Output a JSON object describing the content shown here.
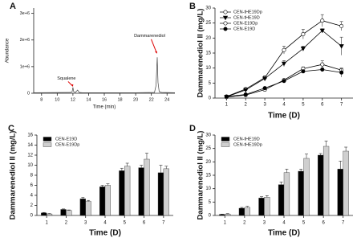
{
  "chart_data": [
    {
      "type": "line",
      "panel_label": "A",
      "xlabel": "Time (min)",
      "ylabel": "Abundance",
      "x": [
        7,
        11.7,
        11.9,
        12.0,
        12.1,
        12.3,
        12.6,
        12.8,
        13.2,
        16,
        20,
        22.4,
        22.6,
        22.75,
        22.85,
        23.0,
        23.3,
        25
      ],
      "series": [
        {
          "color": "#444444",
          "values": [
            20000,
            30000,
            60000,
            220000,
            60000,
            30000,
            120000,
            30000,
            20000,
            20000,
            20000,
            30000,
            300000,
            1350000,
            400000,
            60000,
            30000,
            20000
          ]
        }
      ],
      "annotations": [
        "Squalene",
        "Dammarenediol"
      ],
      "xlim": [
        7,
        25
      ],
      "xticks": [
        8,
        10,
        12,
        14,
        16,
        18,
        20,
        22,
        24
      ],
      "ylim": [
        0,
        3200000
      ],
      "yticks": [
        0,
        {
          "value": 1000000,
          "label": "1e+6"
        },
        {
          "value": 2000000,
          "label": "2e+6"
        },
        {
          "value": 3000000,
          "label": "3e+6"
        }
      ]
    },
    {
      "type": "line",
      "panel_label": "B",
      "xlabel": "Time (D)",
      "ylabel": "Dammarenediol II (mg/L)",
      "x": [
        1,
        2,
        3,
        4,
        5,
        6,
        7
      ],
      "legend": "upper left",
      "series": [
        {
          "name": "CEN-tHE19Dp",
          "color": "#ffffff",
          "marker": "circle",
          "values": [
            0.5,
            3.0,
            6.8,
            16.0,
            21.3,
            25.8,
            24.0
          ],
          "errors": [
            0.2,
            0.4,
            0.6,
            1.3,
            1.6,
            2.0,
            1.5
          ]
        },
        {
          "name": "CEN-tHE19D",
          "color": "#000000",
          "marker": "triangle",
          "values": [
            0.4,
            2.7,
            6.5,
            11.5,
            16.5,
            22.5,
            17.3
          ],
          "errors": [
            0.1,
            0.3,
            0.5,
            1.0,
            0.8,
            0.6,
            3.0
          ]
        },
        {
          "name": "CEN-E19Dp",
          "color": "#ffffff",
          "marker": "circle",
          "values": [
            0.3,
            1.0,
            2.8,
            6.0,
            9.8,
            11.2,
            9.3
          ],
          "errors": [
            0.1,
            0.1,
            0.2,
            0.3,
            0.6,
            1.2,
            0.5
          ]
        },
        {
          "name": "CEN-E19D",
          "color": "#000000",
          "marker": "circle",
          "values": [
            0.5,
            1.2,
            3.3,
            5.7,
            8.9,
            9.5,
            8.5
          ],
          "errors": [
            0.1,
            0.1,
            0.3,
            0.3,
            0.5,
            0.5,
            1.5
          ]
        }
      ],
      "xlim": [
        0.4,
        7.6
      ],
      "xticks": [
        1,
        2,
        3,
        4,
        5,
        6,
        7
      ],
      "ylim": [
        0,
        30
      ],
      "yticks": [
        0,
        5,
        10,
        15,
        20,
        25,
        30
      ]
    },
    {
      "type": "bar",
      "panel_label": "C",
      "xlabel": "Time (D)",
      "ylabel": "Dammarenediol II (mg/L)",
      "categories": [
        "1",
        "2",
        "3",
        "4",
        "5",
        "6",
        "7"
      ],
      "legend": "upper left",
      "series": [
        {
          "name": "CEN-E19D",
          "color": "#000000",
          "values": [
            0.5,
            1.2,
            3.3,
            5.7,
            8.9,
            9.5,
            8.5
          ],
          "errors": [
            0.1,
            0.1,
            0.3,
            0.3,
            0.5,
            0.5,
            1.5
          ]
        },
        {
          "name": "CEN-E19Dp",
          "color": "#cfcfcf",
          "values": [
            0.3,
            1.0,
            2.8,
            6.0,
            9.8,
            11.2,
            9.3
          ],
          "errors": [
            0.1,
            0.1,
            0.2,
            0.3,
            0.6,
            1.2,
            0.5
          ]
        }
      ],
      "ylim": [
        0,
        16
      ],
      "yticks": [
        0,
        2,
        4,
        6,
        8,
        10,
        12,
        14,
        16
      ]
    },
    {
      "type": "bar",
      "panel_label": "D",
      "xlabel": "Time (D)",
      "ylabel": "Dammarenediol II (mg/L)",
      "categories": [
        "1",
        "2",
        "3",
        "4",
        "5",
        "6",
        "7"
      ],
      "legend": "upper left",
      "series": [
        {
          "name": "CEN-tHE19D",
          "color": "#000000",
          "values": [
            0.4,
            2.7,
            6.5,
            11.5,
            16.5,
            22.5,
            17.3
          ],
          "errors": [
            0.1,
            0.3,
            0.5,
            1.0,
            0.8,
            0.6,
            3.0
          ]
        },
        {
          "name": "CEN-tHE19Dp",
          "color": "#cfcfcf",
          "values": [
            0.5,
            3.0,
            6.8,
            16.0,
            21.3,
            25.8,
            24.0
          ],
          "errors": [
            0.2,
            0.4,
            0.6,
            1.3,
            1.6,
            2.0,
            1.5
          ]
        }
      ],
      "ylim": [
        0,
        30
      ],
      "yticks": [
        0,
        5,
        10,
        15,
        20,
        25,
        30
      ]
    }
  ]
}
